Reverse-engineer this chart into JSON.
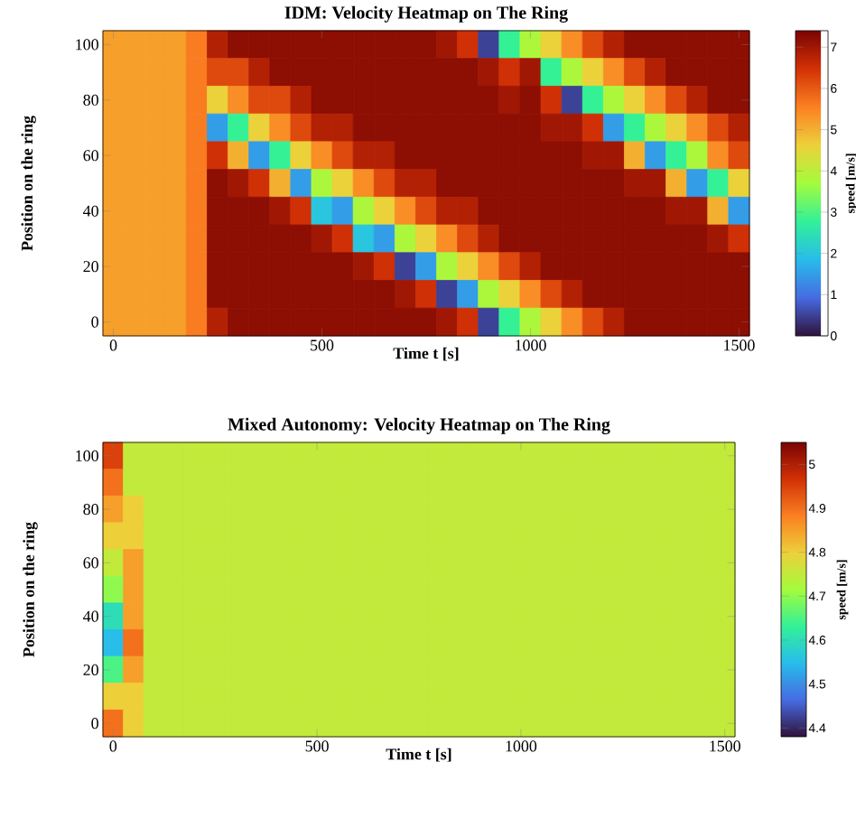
{
  "chart_data": [
    {
      "type": "heatmap",
      "title": "IDM: Velocity Heatmap on The Ring",
      "xlabel": "Time t [s]",
      "ylabel": "Position on the ring",
      "clabel": "speed [m/s]",
      "categories": [
        "0",
        null,
        null,
        null,
        null,
        null,
        null,
        null,
        null,
        null,
        "500",
        null,
        null,
        null,
        null,
        null,
        null,
        null,
        null,
        null,
        "1000",
        null,
        null,
        null,
        null,
        null,
        null,
        null,
        null,
        null,
        "1500"
      ],
      "y_categories": [
        "100",
        null,
        "80",
        null,
        "60",
        null,
        "40",
        null,
        "20",
        null,
        "0"
      ],
      "clim": [
        0,
        7.4
      ],
      "cticks": [
        0,
        1,
        2,
        3,
        4,
        5,
        6,
        7
      ],
      "cells": [
        [
          5.2,
          5.2,
          5.2,
          5.2,
          5.6,
          6.8,
          7.2,
          7.2,
          7.2,
          7.2,
          7.2,
          7.2,
          7.2,
          7.2,
          7.2,
          7.2,
          7.0,
          6.5,
          0.5,
          2.8,
          3.8,
          4.6,
          5.4,
          6.2,
          6.8,
          7.2,
          7.2,
          7.2,
          7.2,
          7.2,
          7.2
        ],
        [
          5.2,
          5.2,
          5.2,
          5.2,
          5.6,
          6.2,
          6.2,
          6.8,
          7.2,
          7.2,
          7.2,
          7.2,
          7.2,
          7.2,
          7.2,
          7.2,
          7.2,
          7.2,
          7.0,
          6.5,
          7.0,
          2.8,
          3.8,
          4.6,
          5.4,
          6.2,
          6.8,
          7.2,
          7.2,
          7.2,
          7.2
        ],
        [
          5.2,
          5.2,
          5.2,
          5.2,
          5.6,
          4.6,
          5.4,
          6.2,
          6.2,
          6.8,
          7.2,
          7.2,
          7.2,
          7.2,
          7.2,
          7.2,
          7.2,
          7.2,
          7.2,
          7.0,
          7.2,
          6.5,
          0.5,
          2.8,
          3.8,
          4.6,
          5.4,
          6.2,
          6.8,
          7.2,
          7.2
        ],
        [
          5.2,
          5.2,
          5.2,
          5.2,
          5.6,
          1.5,
          2.8,
          4.6,
          5.4,
          6.2,
          6.8,
          6.8,
          7.2,
          7.2,
          7.2,
          7.2,
          7.2,
          7.2,
          7.2,
          7.2,
          7.2,
          7.0,
          7.0,
          6.5,
          1.5,
          2.8,
          3.8,
          4.6,
          5.4,
          6.2,
          6.8
        ],
        [
          5.2,
          5.2,
          5.2,
          5.2,
          5.6,
          6.5,
          5,
          1.5,
          2.8,
          4.6,
          5.4,
          6.2,
          6.8,
          6.8,
          7.2,
          7.2,
          7.2,
          7.2,
          7.2,
          7.2,
          7.2,
          7.2,
          7.2,
          7.0,
          7.0,
          5,
          1.5,
          2.8,
          3.8,
          5.4,
          6.2
        ],
        [
          5.2,
          5.2,
          5.2,
          5.2,
          5.6,
          7.2,
          7.0,
          6.5,
          5,
          1.5,
          3.8,
          4.6,
          5.4,
          6.2,
          6.8,
          6.8,
          7.2,
          7.2,
          7.2,
          7.2,
          7.2,
          7.2,
          7.2,
          7.2,
          7.2,
          7.0,
          7.0,
          5,
          1.5,
          2.8,
          4.6
        ],
        [
          5.2,
          5.2,
          5.2,
          5.2,
          5.6,
          7.2,
          7.2,
          7.2,
          7.0,
          6.5,
          2,
          1.5,
          3.8,
          4.6,
          5.4,
          6.2,
          6.8,
          6.8,
          7.2,
          7.2,
          7.2,
          7.2,
          7.2,
          7.2,
          7.2,
          7.2,
          7.2,
          7.0,
          7.0,
          5,
          1.5
        ],
        [
          5.2,
          5.2,
          5.2,
          5.2,
          5.6,
          7.2,
          7.2,
          7.2,
          7.2,
          7.2,
          7.0,
          6.5,
          2,
          1.5,
          3.8,
          4.6,
          5.4,
          6.2,
          6.8,
          7.2,
          7.2,
          7.2,
          7.2,
          7.2,
          7.2,
          7.2,
          7.2,
          7.2,
          7.2,
          7.0,
          6.5
        ],
        [
          5.2,
          5.2,
          5.2,
          5.2,
          5.6,
          7.2,
          7.2,
          7.2,
          7.2,
          7.2,
          7.2,
          7.2,
          7.0,
          6.5,
          0.5,
          1.5,
          3.8,
          4.6,
          5.4,
          6.2,
          6.8,
          7.2,
          7.2,
          7.2,
          7.2,
          7.2,
          7.2,
          7.2,
          7.2,
          7.2,
          7.2
        ],
        [
          5.2,
          5.2,
          5.2,
          5.2,
          5.6,
          7.2,
          7.2,
          7.2,
          7.2,
          7.2,
          7.2,
          7.2,
          7.2,
          7.2,
          7.0,
          6.5,
          0.5,
          1.5,
          3.8,
          4.6,
          5.4,
          6.2,
          6.8,
          7.2,
          7.2,
          7.2,
          7.2,
          7.2,
          7.2,
          7.2,
          7.2
        ],
        [
          5.2,
          5.2,
          5.2,
          5.2,
          5.6,
          6.8,
          7.2,
          7.2,
          7.2,
          7.2,
          7.2,
          7.2,
          7.2,
          7.2,
          7.2,
          7.2,
          7.0,
          6.5,
          0.5,
          2.8,
          3.8,
          4.6,
          5.4,
          6.2,
          6.8,
          7.2,
          7.2,
          7.2,
          7.2,
          7.2,
          7.2
        ]
      ]
    },
    {
      "type": "heatmap",
      "title": "Mixed Autonomy: Velocity Heatmap on The Ring",
      "xlabel": "Time t [s]",
      "ylabel": "Position on the ring",
      "clabel": "speed [m/s]",
      "categories": [
        "0",
        null,
        null,
        null,
        null,
        null,
        null,
        null,
        null,
        null,
        "500",
        null,
        null,
        null,
        null,
        null,
        null,
        null,
        null,
        null,
        "1000",
        null,
        null,
        null,
        null,
        null,
        null,
        null,
        null,
        null,
        "1500"
      ],
      "y_categories": [
        "100",
        null,
        "80",
        null,
        "60",
        null,
        "40",
        null,
        "20",
        null,
        "0"
      ],
      "clim": [
        4.38,
        5.05
      ],
      "cticks": [
        4.4,
        4.5,
        4.6,
        4.7,
        4.8,
        4.9,
        5
      ],
      "cells": [
        [
          4.95,
          4.75,
          4.75,
          4.75,
          4.75,
          4.75,
          4.75,
          4.75,
          4.75,
          4.75,
          4.75,
          4.75,
          4.75,
          4.75,
          4.75,
          4.75,
          4.75,
          4.75,
          4.75,
          4.75,
          4.75,
          4.75,
          4.75,
          4.75,
          4.75,
          4.75,
          4.75,
          4.75,
          4.75,
          4.75,
          4.75
        ],
        [
          4.9,
          4.75,
          4.75,
          4.75,
          4.75,
          4.75,
          4.75,
          4.75,
          4.75,
          4.75,
          4.75,
          4.75,
          4.75,
          4.75,
          4.75,
          4.75,
          4.75,
          4.75,
          4.75,
          4.75,
          4.75,
          4.75,
          4.75,
          4.75,
          4.75,
          4.75,
          4.75,
          4.75,
          4.75,
          4.75,
          4.75
        ],
        [
          4.85,
          4.8,
          4.75,
          4.75,
          4.75,
          4.75,
          4.75,
          4.75,
          4.75,
          4.75,
          4.75,
          4.75,
          4.75,
          4.75,
          4.75,
          4.75,
          4.75,
          4.75,
          4.75,
          4.75,
          4.75,
          4.75,
          4.75,
          4.75,
          4.75,
          4.75,
          4.75,
          4.75,
          4.75,
          4.75,
          4.75
        ],
        [
          4.8,
          4.8,
          4.75,
          4.75,
          4.75,
          4.75,
          4.75,
          4.75,
          4.75,
          4.75,
          4.75,
          4.75,
          4.75,
          4.75,
          4.75,
          4.75,
          4.75,
          4.75,
          4.75,
          4.75,
          4.75,
          4.75,
          4.75,
          4.75,
          4.75,
          4.75,
          4.75,
          4.75,
          4.75,
          4.75,
          4.75
        ],
        [
          4.75,
          4.85,
          4.75,
          4.75,
          4.75,
          4.75,
          4.75,
          4.75,
          4.75,
          4.75,
          4.75,
          4.75,
          4.75,
          4.75,
          4.75,
          4.75,
          4.75,
          4.75,
          4.75,
          4.75,
          4.75,
          4.75,
          4.75,
          4.75,
          4.75,
          4.75,
          4.75,
          4.75,
          4.75,
          4.75,
          4.75
        ],
        [
          4.7,
          4.85,
          4.75,
          4.75,
          4.75,
          4.75,
          4.75,
          4.75,
          4.75,
          4.75,
          4.75,
          4.75,
          4.75,
          4.75,
          4.75,
          4.75,
          4.75,
          4.75,
          4.75,
          4.75,
          4.75,
          4.75,
          4.75,
          4.75,
          4.75,
          4.75,
          4.75,
          4.75,
          4.75,
          4.75,
          4.75
        ],
        [
          4.6,
          4.85,
          4.75,
          4.75,
          4.75,
          4.75,
          4.75,
          4.75,
          4.75,
          4.75,
          4.75,
          4.75,
          4.75,
          4.75,
          4.75,
          4.75,
          4.75,
          4.75,
          4.75,
          4.75,
          4.75,
          4.75,
          4.75,
          4.75,
          4.75,
          4.75,
          4.75,
          4.75,
          4.75,
          4.75,
          4.75
        ],
        [
          4.55,
          4.9,
          4.75,
          4.75,
          4.75,
          4.75,
          4.75,
          4.75,
          4.75,
          4.75,
          4.75,
          4.75,
          4.75,
          4.75,
          4.75,
          4.75,
          4.75,
          4.75,
          4.75,
          4.75,
          4.75,
          4.75,
          4.75,
          4.75,
          4.75,
          4.75,
          4.75,
          4.75,
          4.75,
          4.75,
          4.75
        ],
        [
          4.65,
          4.85,
          4.75,
          4.75,
          4.75,
          4.75,
          4.75,
          4.75,
          4.75,
          4.75,
          4.75,
          4.75,
          4.75,
          4.75,
          4.75,
          4.75,
          4.75,
          4.75,
          4.75,
          4.75,
          4.75,
          4.75,
          4.75,
          4.75,
          4.75,
          4.75,
          4.75,
          4.75,
          4.75,
          4.75,
          4.75
        ],
        [
          4.8,
          4.8,
          4.75,
          4.75,
          4.75,
          4.75,
          4.75,
          4.75,
          4.75,
          4.75,
          4.75,
          4.75,
          4.75,
          4.75,
          4.75,
          4.75,
          4.75,
          4.75,
          4.75,
          4.75,
          4.75,
          4.75,
          4.75,
          4.75,
          4.75,
          4.75,
          4.75,
          4.75,
          4.75,
          4.75,
          4.75
        ],
        [
          4.9,
          4.8,
          4.75,
          4.75,
          4.75,
          4.75,
          4.75,
          4.75,
          4.75,
          4.75,
          4.75,
          4.75,
          4.75,
          4.75,
          4.75,
          4.75,
          4.75,
          4.75,
          4.75,
          4.75,
          4.75,
          4.75,
          4.75,
          4.75,
          4.75,
          4.75,
          4.75,
          4.75,
          4.75,
          4.75,
          4.75
        ]
      ]
    }
  ]
}
